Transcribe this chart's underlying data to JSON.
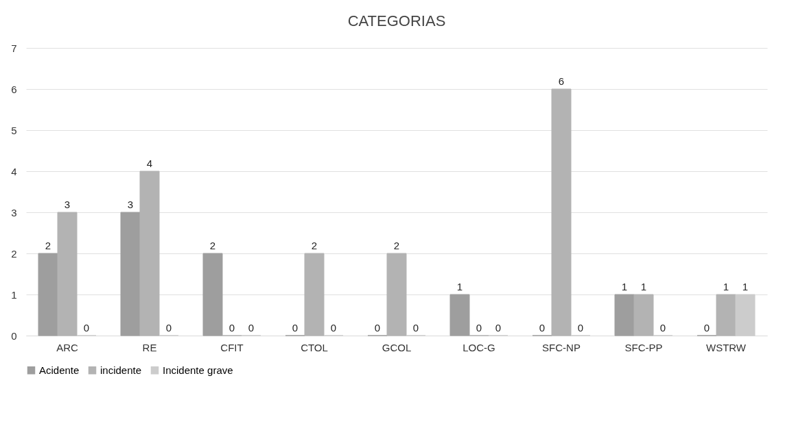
{
  "chart_data": {
    "type": "bar",
    "title": "CATEGORIAS",
    "categories": [
      "ARC",
      "RE",
      "CFIT",
      "CTOL",
      "GCOL",
      "LOC-G",
      "SFC-NP",
      "SFC-PP",
      "WSTRW"
    ],
    "series": [
      {
        "name": "Acidente",
        "color": "#9e9e9e",
        "values": [
          2,
          3,
          2,
          0,
          0,
          1,
          0,
          1,
          0
        ]
      },
      {
        "name": "incidente",
        "color": "#b3b3b3",
        "values": [
          3,
          4,
          0,
          2,
          2,
          0,
          6,
          1,
          1
        ]
      },
      {
        "name": "Incidente grave",
        "color": "#cccccc",
        "values": [
          0,
          0,
          0,
          0,
          0,
          0,
          0,
          0,
          1
        ]
      }
    ],
    "ylim": [
      0,
      7
    ],
    "yticks": [
      0,
      1,
      2,
      3,
      4,
      5,
      6,
      7
    ],
    "grid": "y",
    "legend": "bottom",
    "data_labels": true
  }
}
